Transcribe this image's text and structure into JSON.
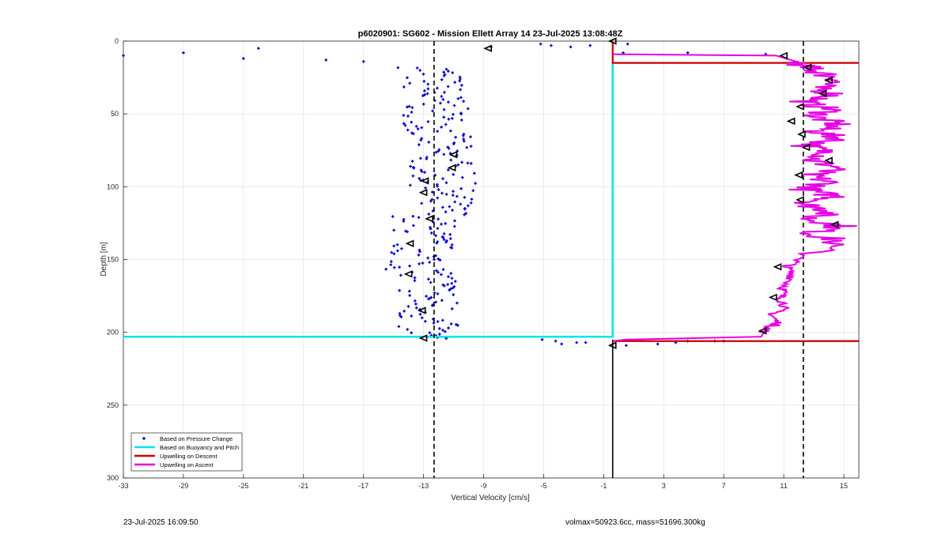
{
  "chart_data": {
    "type": "scatter",
    "title": "p6020901: SG602 - Mission Ellett Array 14 23-Jul-2025 13:08:48Z",
    "xlabel": "Vertical Velocity [cm/s]",
    "ylabel": "Depth [m]",
    "xlim": [
      -33,
      16
    ],
    "ylim": [
      0,
      300
    ],
    "y_reversed": true,
    "grid": true,
    "xticks": [
      -33,
      -29,
      -25,
      -21,
      -17,
      -13,
      -9,
      -5,
      -1,
      3,
      7,
      11,
      15
    ],
    "yticks": [
      0,
      50,
      100,
      150,
      200,
      250,
      300
    ],
    "legend_position": "bottom-left",
    "legend": [
      {
        "label": "Based on Pressure Change",
        "color": "#0000CD",
        "kind": "marker"
      },
      {
        "label": "Based on Buoyancy and Pitch",
        "color": "#00E5EE",
        "kind": "line"
      },
      {
        "label": "Upwelling on Descent",
        "color": "#CC0000",
        "kind": "line"
      },
      {
        "label": "Upwelling on Ascent",
        "color": "#E600E6",
        "kind": "line"
      }
    ],
    "reference_lines": {
      "dashed_x": [
        -12.3,
        12.3
      ],
      "black_vertical": {
        "x": -0.4,
        "y_from": 205,
        "y_to": 300
      },
      "red_horizontal_depths": [
        15,
        206
      ]
    },
    "series_buoyancy_pitch": {
      "name": "Based on Buoyancy and Pitch",
      "x": [
        -33,
        -0.4,
        -0.4
      ],
      "y": [
        203,
        203,
        15
      ]
    },
    "series_descent": {
      "name": "Upwelling on Descent",
      "x": [
        -0.4,
        -0.4,
        -0.4,
        16
      ],
      "y": [
        1,
        15,
        15,
        15
      ]
    },
    "series_descent_bottom": {
      "x": [
        -0.4,
        16
      ],
      "y": [
        206,
        206
      ]
    },
    "series_ascent": {
      "name": "Upwelling on Ascent",
      "x": [
        -0.4,
        10.5,
        11.8,
        12.5,
        13.5,
        14.8,
        13.0,
        14.5,
        12.2,
        14.2,
        13.0,
        14.6,
        13.2,
        14.8,
        12.5,
        14.2,
        12.8,
        14.7,
        12.6,
        14.0,
        12.4,
        14.6,
        12.3,
        14.3,
        12.6,
        14.9,
        12.8,
        14.6,
        12.1,
        11.2,
        11.6,
        11.0,
        10.8,
        11.1,
        10.2,
        10.6,
        9.8,
        9.5,
        0.5,
        -0.4
      ],
      "y": [
        9,
        10,
        14,
        18,
        22,
        27,
        32,
        37,
        42,
        47,
        52,
        57,
        62,
        67,
        72,
        77,
        82,
        87,
        92,
        97,
        102,
        107,
        112,
        117,
        122,
        127,
        132,
        137,
        150,
        155,
        162,
        170,
        176,
        182,
        188,
        194,
        198,
        203,
        205,
        206
      ]
    },
    "series_pressure_change": {
      "name": "Based on Pressure Change",
      "scatter_left": {
        "x_center": -12.5,
        "x_spread": 2.2,
        "y_from": 18,
        "y_to": 204
      },
      "extra_points": [
        {
          "x": -33,
          "y": 10
        },
        {
          "x": -29,
          "y": 8
        },
        {
          "x": -25,
          "y": 12
        },
        {
          "x": -24,
          "y": 5
        },
        {
          "x": -19.5,
          "y": 13
        },
        {
          "x": -17,
          "y": 14
        },
        {
          "x": -8.5,
          "y": 4
        },
        {
          "x": -5.2,
          "y": 2
        },
        {
          "x": -4.5,
          "y": 3
        },
        {
          "x": -3.2,
          "y": 4
        },
        {
          "x": -1.9,
          "y": 3
        },
        {
          "x": 0.3,
          "y": 8
        },
        {
          "x": 0.6,
          "y": 2
        },
        {
          "x": 4.6,
          "y": 8
        },
        {
          "x": 9.8,
          "y": 9
        },
        {
          "x": -11.5,
          "y": 204
        },
        {
          "x": -5.1,
          "y": 205
        },
        {
          "x": -4.2,
          "y": 206
        },
        {
          "x": -3.8,
          "y": 208
        },
        {
          "x": -2.8,
          "y": 207
        },
        {
          "x": -2.2,
          "y": 207
        },
        {
          "x": 0.5,
          "y": 209
        },
        {
          "x": 2.6,
          "y": 208
        },
        {
          "x": 3.8,
          "y": 207
        },
        {
          "x": 4.6,
          "y": 206
        },
        {
          "x": 6.4,
          "y": 206
        },
        {
          "x": 7.0,
          "y": 206
        }
      ]
    },
    "triangle_markers": [
      {
        "x": -8.7,
        "y": 5
      },
      {
        "x": -0.4,
        "y": 0
      },
      {
        "x": 11.0,
        "y": 10
      },
      {
        "x": 12.6,
        "y": 18
      },
      {
        "x": 14.0,
        "y": 27
      },
      {
        "x": 13.6,
        "y": 36
      },
      {
        "x": 12.1,
        "y": 45
      },
      {
        "x": 11.5,
        "y": 55
      },
      {
        "x": 12.2,
        "y": 64
      },
      {
        "x": 12.5,
        "y": 73
      },
      {
        "x": 14.0,
        "y": 82
      },
      {
        "x": 12.0,
        "y": 92
      },
      {
        "x": 12.1,
        "y": 109
      },
      {
        "x": 14.4,
        "y": 126
      },
      {
        "x": 10.6,
        "y": 155
      },
      {
        "x": 10.3,
        "y": 176
      },
      {
        "x": 9.6,
        "y": 199
      },
      {
        "x": -0.4,
        "y": 209
      },
      {
        "x": -11.0,
        "y": 78
      },
      {
        "x": -11.1,
        "y": 87
      },
      {
        "x": -12.9,
        "y": 96
      },
      {
        "x": -13.0,
        "y": 104
      },
      {
        "x": -12.6,
        "y": 122
      },
      {
        "x": -13.9,
        "y": 139
      },
      {
        "x": -14.0,
        "y": 160
      },
      {
        "x": -13.1,
        "y": 185
      },
      {
        "x": -13.0,
        "y": 204
      }
    ]
  },
  "footer": {
    "timestamp": "23-Jul-2025 16:09:50",
    "vol_info": "volmax=50923.6cc, mass=51696.300kg"
  },
  "colors": {
    "pressure": "#0000CD",
    "buoyancy": "#00E5EE",
    "descent": "#CC0000",
    "ascent": "#E600E6",
    "grid": "#E6E6E6"
  }
}
